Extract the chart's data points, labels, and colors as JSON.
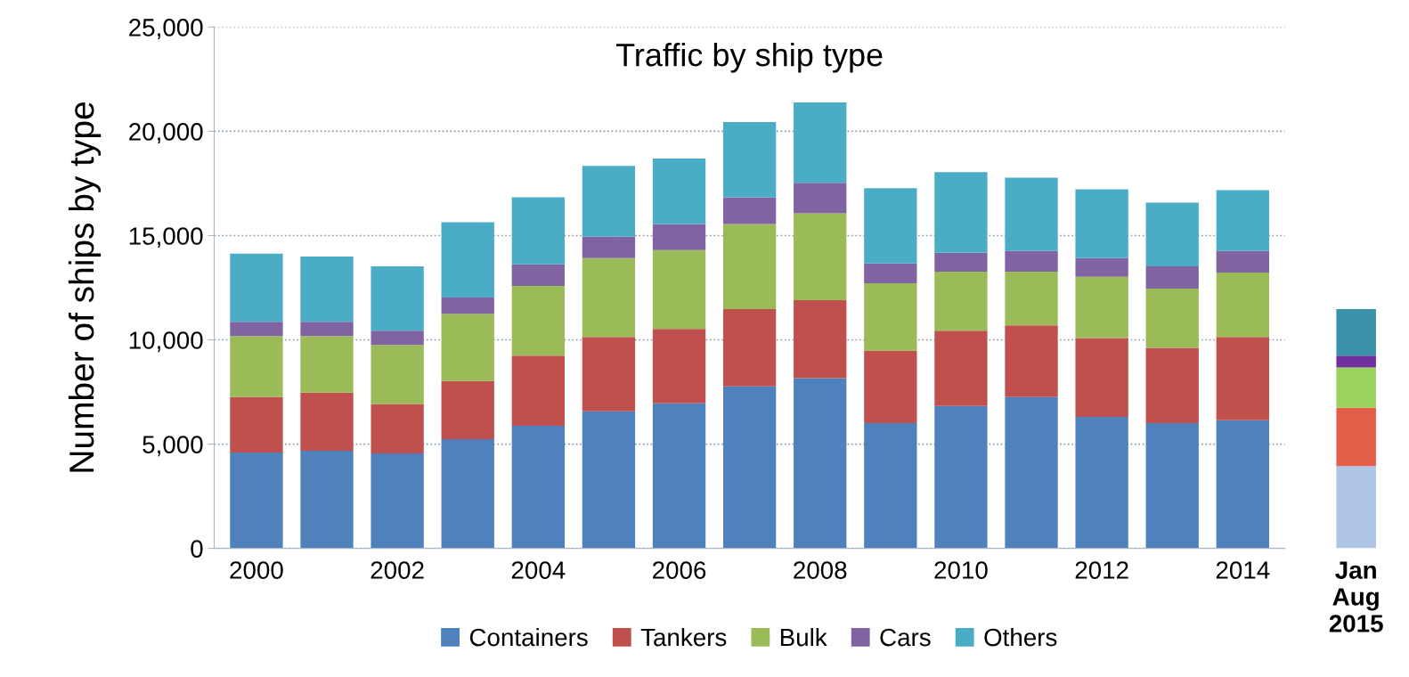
{
  "chart_data": [
    {
      "type": "bar",
      "stacked": true,
      "title": "Traffic by ship type",
      "ylabel": "Number of ships by type",
      "categories": [
        "2000",
        null,
        "2002",
        null,
        "2004",
        null,
        "2006",
        null,
        "2008",
        null,
        "2010",
        null,
        "2012",
        null,
        "2014"
      ],
      "series": [
        {
          "name": "Containers",
          "color": "#4f81bd",
          "values": [
            4600,
            4680,
            4550,
            5240,
            5880,
            6570,
            6960,
            7770,
            8160,
            6010,
            6830,
            7260,
            6310,
            6010,
            6140
          ]
        },
        {
          "name": "Tankers",
          "color": "#c0504d",
          "values": [
            2660,
            2790,
            2370,
            2790,
            3360,
            3570,
            3560,
            3700,
            3740,
            3480,
            3610,
            3440,
            3780,
            3610,
            4000
          ]
        },
        {
          "name": "Bulk",
          "color": "#9bbb59",
          "values": [
            2920,
            2710,
            2830,
            3220,
            3350,
            3780,
            3780,
            4080,
            4170,
            3220,
            2830,
            2570,
            2930,
            2840,
            3090
          ]
        },
        {
          "name": "Cars",
          "color": "#8064a2",
          "values": [
            690,
            690,
            690,
            780,
            1030,
            1030,
            1250,
            1290,
            1460,
            950,
            910,
            990,
            900,
            1070,
            1030
          ]
        },
        {
          "name": "Others",
          "color": "#4bacc6",
          "values": [
            3260,
            3130,
            3090,
            3610,
            3220,
            3390,
            3140,
            3610,
            3860,
            3610,
            3860,
            3520,
            3300,
            3050,
            2920
          ]
        }
      ],
      "ylim": [
        0,
        25000
      ],
      "yticks": [
        {
          "value": 0,
          "label": "0"
        },
        {
          "value": 5000,
          "label": "5,000"
        },
        {
          "value": 10000,
          "label": "10,000"
        },
        {
          "value": 15000,
          "label": "15,000"
        },
        {
          "value": 20000,
          "label": "20,000"
        },
        {
          "value": 25000,
          "label": "25,000"
        }
      ],
      "grid": "y",
      "legend": "bottom"
    },
    {
      "type": "bar",
      "stacked": true,
      "categories": [
        "Jan\nAug\n2015"
      ],
      "series": [
        {
          "color": "#aec5e8",
          "values": [
            3950
          ]
        },
        {
          "color": "#e2604a",
          "values": [
            2790
          ]
        },
        {
          "color": "#9bd45c",
          "values": [
            1940
          ]
        },
        {
          "color": "#7030a0",
          "values": [
            560
          ]
        },
        {
          "color": "#3a92a8",
          "values": [
            2230
          ]
        }
      ],
      "ylim": [
        0,
        25000
      ],
      "tick_labels": "x"
    }
  ]
}
